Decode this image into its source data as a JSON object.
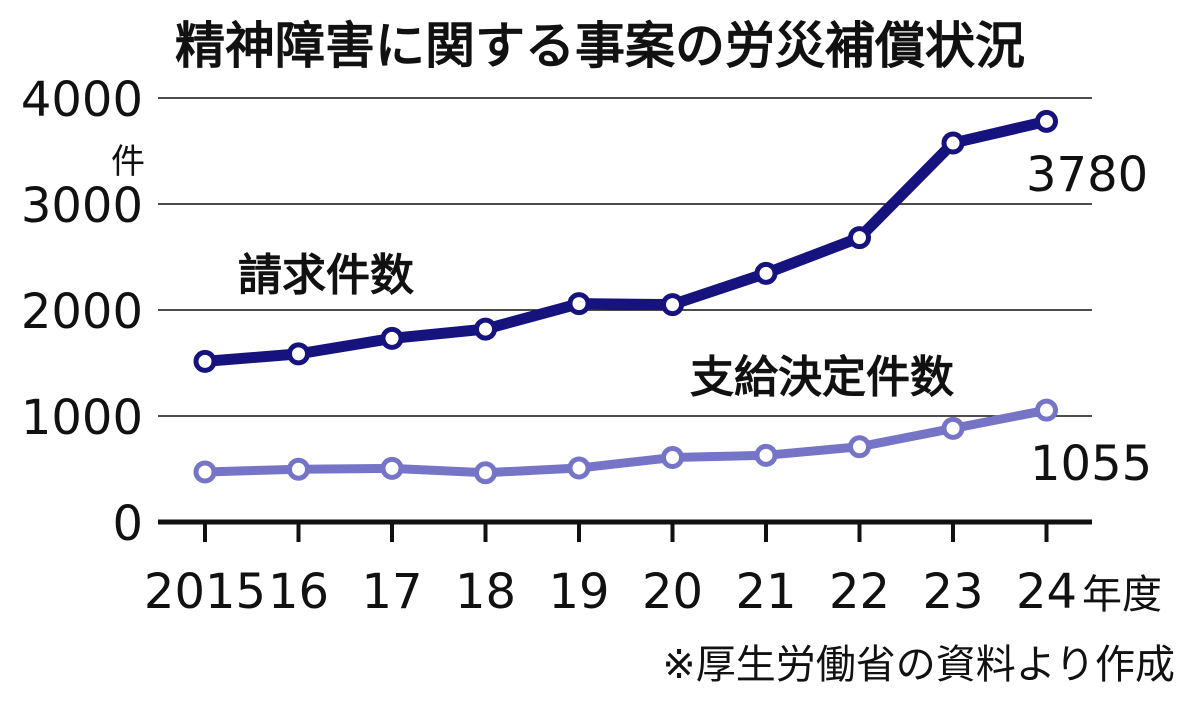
{
  "chart_data": {
    "type": "line",
    "title": "精神障害に関する事案の労災補償状況",
    "y_unit": "件",
    "x_unit": "年度",
    "categories": [
      "2015",
      "16",
      "17",
      "18",
      "19",
      "20",
      "21",
      "22",
      "23",
      "24"
    ],
    "ylim": [
      0,
      4000
    ],
    "yticks": [
      "0",
      "1000",
      "2000",
      "3000",
      "4000"
    ],
    "grid": true,
    "series": [
      {
        "name": "請求件数",
        "values": [
          1515,
          1586,
          1732,
          1820,
          2060,
          2051,
          2346,
          2683,
          3575,
          3780
        ],
        "color": "#17137e",
        "end_label": "3780"
      },
      {
        "name": "支給決定件数",
        "values": [
          472,
          498,
          506,
          465,
          509,
          608,
          629,
          710,
          883,
          1055
        ],
        "color": "#7674c6",
        "end_label": "1055"
      }
    ],
    "source_note": "※厚生労働省の資料より作成"
  }
}
